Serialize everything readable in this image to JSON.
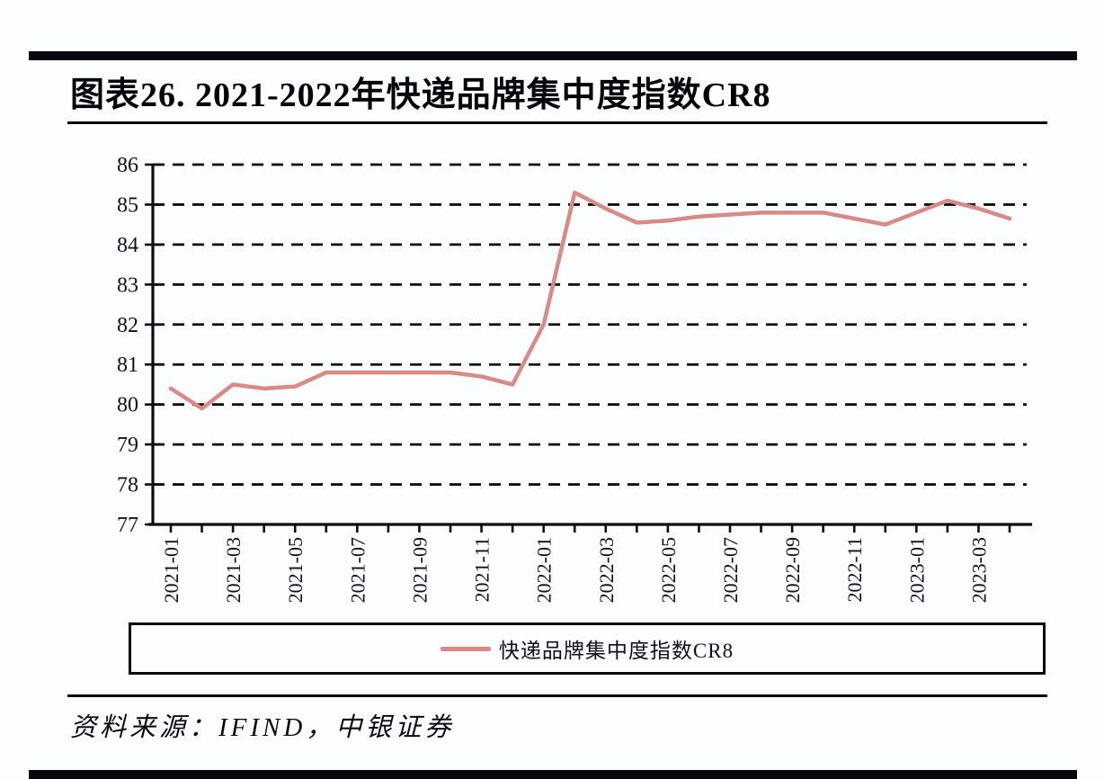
{
  "page": {
    "title": "图表26. 2021-2022年快递品牌集中度指数CR8",
    "source": "资料来源：IFIND，中银证券"
  },
  "legend": {
    "label": "快递品牌集中度指数CR8"
  },
  "colors": {
    "line": "#d98a84",
    "ink": "#0d0d12",
    "background": "#fcfdfe",
    "divider": "#08080c"
  },
  "chart_data": {
    "type": "line",
    "title": "图表26. 2021-2022年快递品牌集中度指数CR8",
    "x": [
      "2021-01",
      "2021-02",
      "2021-03",
      "2021-04",
      "2021-05",
      "2021-06",
      "2021-07",
      "2021-08",
      "2021-09",
      "2021-10",
      "2021-11",
      "2021-12",
      "2022-01",
      "2022-02",
      "2022-03",
      "2022-04",
      "2022-05",
      "2022-06",
      "2022-07",
      "2022-08",
      "2022-09",
      "2022-10",
      "2022-11",
      "2022-12",
      "2023-01",
      "2023-02",
      "2023-03",
      "2023-04"
    ],
    "series": [
      {
        "name": "快递品牌集中度指数CR8",
        "color": "#d98a84",
        "values": [
          80.4,
          79.9,
          80.5,
          80.4,
          80.45,
          80.8,
          80.8,
          80.8,
          80.8,
          80.8,
          80.7,
          80.5,
          82.0,
          85.3,
          84.9,
          84.55,
          84.6,
          84.7,
          84.75,
          84.8,
          84.8,
          84.8,
          84.65,
          84.5,
          84.8,
          85.1,
          84.9,
          84.65
        ]
      }
    ],
    "x_tick_labels": [
      "2021-01",
      "2021-03",
      "2021-05",
      "2021-07",
      "2021-09",
      "2021-11",
      "2022-01",
      "2022-03",
      "2022-05",
      "2022-07",
      "2022-09",
      "2022-11",
      "2023-01",
      "2023-03"
    ],
    "ylim": [
      77,
      86
    ],
    "y_ticks": [
      77,
      78,
      79,
      80,
      81,
      82,
      83,
      84,
      85,
      86
    ],
    "grid": "horizontal-dashed",
    "legend_position": "bottom-box",
    "xlabel": "",
    "ylabel": ""
  }
}
